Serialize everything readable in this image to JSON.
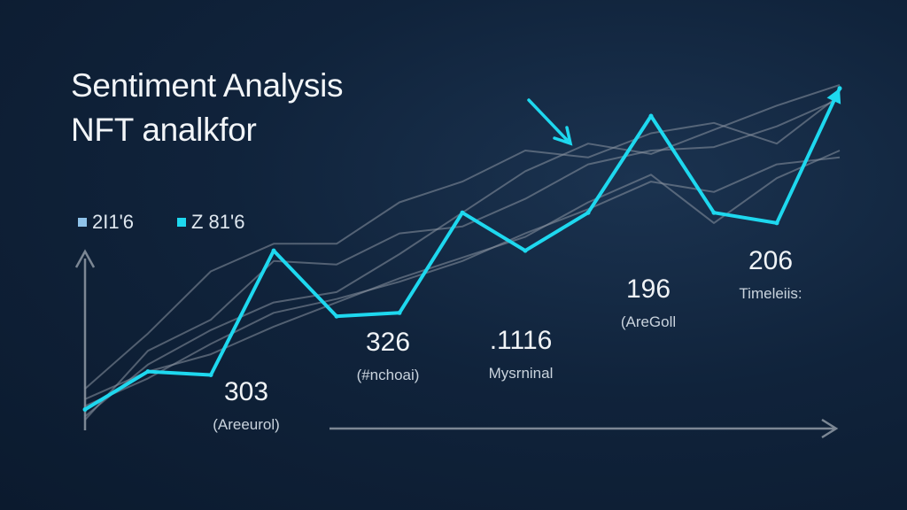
{
  "title_line1": "Sentiment Analysis",
  "title_line2": "NFT analkfor",
  "legend": [
    {
      "label": "2I1'6",
      "color": "#8fc3ea"
    },
    {
      "label": "Z 81'6",
      "color": "#1ed8ef"
    }
  ],
  "annotations": [
    {
      "value": "303",
      "label": "(Areeurol)"
    },
    {
      "value": "326",
      "label": "(#nchoai)"
    },
    {
      "value": ".1116",
      "label": "Mysrninal"
    },
    {
      "value": "196",
      "label": "(AreGoll"
    },
    {
      "value": "206",
      "label": "Timeleiis:"
    }
  ],
  "colors": {
    "background": "#0f2138",
    "highlight_line": "#1ed8ef",
    "grey_line": "#8a94a0",
    "axis": "#7c8794"
  },
  "chart_data": {
    "type": "line",
    "title": "Sentiment Analysis NFT analkfor",
    "xlabel": "",
    "ylabel": "",
    "x": [
      0,
      1,
      2,
      3,
      4,
      5,
      6,
      7,
      8,
      9,
      10,
      11,
      12
    ],
    "xlim": [
      0,
      12
    ],
    "ylim": [
      0,
      100
    ],
    "grid": false,
    "legend_position": "top-left",
    "series": [
      {
        "name": "Z 81'6",
        "color": "#1ed8ef",
        "emphasis": true,
        "values": [
          5,
          16,
          15,
          51,
          32,
          33,
          62,
          51,
          62,
          90,
          62,
          59,
          98
        ]
      },
      {
        "values": [
          2,
          22,
          31,
          48,
          47,
          56,
          58,
          66,
          76,
          80,
          81,
          87,
          95
        ]
      },
      {
        "values": [
          11,
          27,
          45,
          53,
          53,
          65,
          71,
          80,
          78,
          85,
          88,
          82,
          96
        ]
      },
      {
        "values": [
          3,
          18,
          28,
          36,
          39,
          50,
          62,
          74,
          82,
          79,
          86,
          93,
          99
        ]
      },
      {
        "values": [
          6,
          14,
          24,
          33,
          37,
          42,
          48,
          56,
          63,
          71,
          68,
          76,
          78
        ]
      },
      {
        "values": [
          8,
          16,
          21,
          29,
          36,
          43,
          49,
          55,
          65,
          73,
          59,
          72,
          80
        ]
      }
    ]
  }
}
